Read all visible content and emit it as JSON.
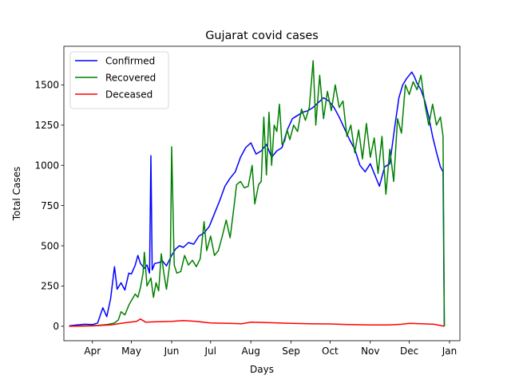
{
  "chart_data": {
    "type": "line",
    "title": "Gujarat covid cases",
    "xlabel": "Days",
    "ylabel": "Total Cases",
    "x_range": [
      "2020-03-10",
      "2021-01-09"
    ],
    "ylim": [
      -90,
      1740
    ],
    "x_ticks": [
      {
        "date": "2020-04-01",
        "label": "Apr"
      },
      {
        "date": "2020-05-01",
        "label": "May"
      },
      {
        "date": "2020-06-01",
        "label": "Jun"
      },
      {
        "date": "2020-07-01",
        "label": "Jul"
      },
      {
        "date": "2020-08-01",
        "label": "Aug"
      },
      {
        "date": "2020-09-01",
        "label": "Sep"
      },
      {
        "date": "2020-10-01",
        "label": "Oct"
      },
      {
        "date": "2020-11-01",
        "label": "Nov"
      },
      {
        "date": "2020-12-01",
        "label": "Dec"
      },
      {
        "date": "2021-01-01",
        "label": "Jan"
      }
    ],
    "y_ticks": [
      {
        "value": 0,
        "label": "0"
      },
      {
        "value": 250,
        "label": "250"
      },
      {
        "value": 500,
        "label": "500"
      },
      {
        "value": 750,
        "label": "750"
      },
      {
        "value": 1000,
        "label": "1000"
      },
      {
        "value": 1250,
        "label": "1250"
      },
      {
        "value": 1500,
        "label": "1500"
      }
    ],
    "grid": false,
    "legend": "top-left",
    "series": [
      {
        "name": "Confirmed",
        "color": "#0000ff",
        "points": [
          [
            "2020-03-14",
            2
          ],
          [
            "2020-03-20",
            8
          ],
          [
            "2020-03-26",
            12
          ],
          [
            "2020-04-01",
            10
          ],
          [
            "2020-04-05",
            20
          ],
          [
            "2020-04-09",
            115
          ],
          [
            "2020-04-12",
            60
          ],
          [
            "2020-04-15",
            170
          ],
          [
            "2020-04-18",
            370
          ],
          [
            "2020-04-20",
            230
          ],
          [
            "2020-04-23",
            270
          ],
          [
            "2020-04-26",
            225
          ],
          [
            "2020-04-29",
            330
          ],
          [
            "2020-05-01",
            325
          ],
          [
            "2020-05-04",
            380
          ],
          [
            "2020-05-06",
            440
          ],
          [
            "2020-05-08",
            390
          ],
          [
            "2020-05-11",
            360
          ],
          [
            "2020-05-13",
            380
          ],
          [
            "2020-05-15",
            330
          ],
          [
            "2020-05-16",
            1060
          ],
          [
            "2020-05-17",
            350
          ],
          [
            "2020-05-19",
            390
          ],
          [
            "2020-05-22",
            395
          ],
          [
            "2020-05-25",
            405
          ],
          [
            "2020-05-28",
            375
          ],
          [
            "2020-06-01",
            440
          ],
          [
            "2020-06-04",
            480
          ],
          [
            "2020-06-07",
            500
          ],
          [
            "2020-06-10",
            490
          ],
          [
            "2020-06-14",
            520
          ],
          [
            "2020-06-18",
            510
          ],
          [
            "2020-06-22",
            560
          ],
          [
            "2020-06-26",
            580
          ],
          [
            "2020-06-30",
            620
          ],
          [
            "2020-07-04",
            700
          ],
          [
            "2020-07-08",
            780
          ],
          [
            "2020-07-12",
            870
          ],
          [
            "2020-07-16",
            920
          ],
          [
            "2020-07-20",
            960
          ],
          [
            "2020-07-24",
            1050
          ],
          [
            "2020-07-28",
            1110
          ],
          [
            "2020-08-01",
            1140
          ],
          [
            "2020-08-05",
            1070
          ],
          [
            "2020-08-09",
            1090
          ],
          [
            "2020-08-13",
            1130
          ],
          [
            "2020-08-17",
            1050
          ],
          [
            "2020-08-21",
            1090
          ],
          [
            "2020-08-25",
            1110
          ],
          [
            "2020-08-29",
            1220
          ],
          [
            "2020-09-02",
            1290
          ],
          [
            "2020-09-06",
            1310
          ],
          [
            "2020-09-10",
            1330
          ],
          [
            "2020-09-14",
            1340
          ],
          [
            "2020-09-18",
            1360
          ],
          [
            "2020-09-22",
            1390
          ],
          [
            "2020-09-26",
            1420
          ],
          [
            "2020-09-30",
            1400
          ],
          [
            "2020-10-04",
            1360
          ],
          [
            "2020-10-08",
            1300
          ],
          [
            "2020-10-12",
            1230
          ],
          [
            "2020-10-16",
            1160
          ],
          [
            "2020-10-20",
            1100
          ],
          [
            "2020-10-24",
            1000
          ],
          [
            "2020-10-28",
            960
          ],
          [
            "2020-11-01",
            1010
          ],
          [
            "2020-11-05",
            930
          ],
          [
            "2020-11-08",
            870
          ],
          [
            "2020-11-12",
            990
          ],
          [
            "2020-11-16",
            1010
          ],
          [
            "2020-11-20",
            1250
          ],
          [
            "2020-11-23",
            1420
          ],
          [
            "2020-11-26",
            1500
          ],
          [
            "2020-11-29",
            1540
          ],
          [
            "2020-12-03",
            1580
          ],
          [
            "2020-12-05",
            1550
          ],
          [
            "2020-12-07",
            1510
          ],
          [
            "2020-12-10",
            1470
          ],
          [
            "2020-12-13",
            1400
          ],
          [
            "2020-12-16",
            1300
          ],
          [
            "2020-12-19",
            1180
          ],
          [
            "2020-12-22",
            1080
          ],
          [
            "2020-12-25",
            990
          ],
          [
            "2020-12-27",
            960
          ],
          [
            "2020-12-28",
            0
          ]
        ]
      },
      {
        "name": "Recovered",
        "color": "#008000",
        "points": [
          [
            "2020-03-14",
            0
          ],
          [
            "2020-03-28",
            2
          ],
          [
            "2020-04-05",
            5
          ],
          [
            "2020-04-12",
            10
          ],
          [
            "2020-04-18",
            20
          ],
          [
            "2020-04-21",
            40
          ],
          [
            "2020-04-23",
            90
          ],
          [
            "2020-04-26",
            70
          ],
          [
            "2020-04-29",
            130
          ],
          [
            "2020-05-01",
            160
          ],
          [
            "2020-05-04",
            200
          ],
          [
            "2020-05-06",
            180
          ],
          [
            "2020-05-08",
            240
          ],
          [
            "2020-05-10",
            330
          ],
          [
            "2020-05-11",
            460
          ],
          [
            "2020-05-13",
            250
          ],
          [
            "2020-05-16",
            300
          ],
          [
            "2020-05-18",
            180
          ],
          [
            "2020-05-20",
            270
          ],
          [
            "2020-05-22",
            220
          ],
          [
            "2020-05-24",
            450
          ],
          [
            "2020-05-26",
            330
          ],
          [
            "2020-05-28",
            230
          ],
          [
            "2020-05-31",
            420
          ],
          [
            "2020-06-01",
            1115
          ],
          [
            "2020-06-03",
            380
          ],
          [
            "2020-06-05",
            330
          ],
          [
            "2020-06-08",
            340
          ],
          [
            "2020-06-11",
            440
          ],
          [
            "2020-06-14",
            380
          ],
          [
            "2020-06-17",
            410
          ],
          [
            "2020-06-20",
            370
          ],
          [
            "2020-06-23",
            420
          ],
          [
            "2020-06-26",
            650
          ],
          [
            "2020-06-28",
            470
          ],
          [
            "2020-07-01",
            560
          ],
          [
            "2020-07-04",
            440
          ],
          [
            "2020-07-07",
            470
          ],
          [
            "2020-07-10",
            560
          ],
          [
            "2020-07-13",
            660
          ],
          [
            "2020-07-16",
            550
          ],
          [
            "2020-07-19",
            740
          ],
          [
            "2020-07-21",
            880
          ],
          [
            "2020-07-24",
            900
          ],
          [
            "2020-07-27",
            860
          ],
          [
            "2020-07-30",
            870
          ],
          [
            "2020-08-02",
            1000
          ],
          [
            "2020-08-04",
            760
          ],
          [
            "2020-08-07",
            880
          ],
          [
            "2020-08-09",
            900
          ],
          [
            "2020-08-11",
            1300
          ],
          [
            "2020-08-13",
            940
          ],
          [
            "2020-08-15",
            1330
          ],
          [
            "2020-08-17",
            1000
          ],
          [
            "2020-08-19",
            1250
          ],
          [
            "2020-08-21",
            1210
          ],
          [
            "2020-08-23",
            1380
          ],
          [
            "2020-08-25",
            1130
          ],
          [
            "2020-08-27",
            1150
          ],
          [
            "2020-08-29",
            1220
          ],
          [
            "2020-08-31",
            1160
          ],
          [
            "2020-09-03",
            1250
          ],
          [
            "2020-09-06",
            1210
          ],
          [
            "2020-09-09",
            1350
          ],
          [
            "2020-09-12",
            1280
          ],
          [
            "2020-09-15",
            1360
          ],
          [
            "2020-09-18",
            1650
          ],
          [
            "2020-09-20",
            1250
          ],
          [
            "2020-09-23",
            1560
          ],
          [
            "2020-09-26",
            1290
          ],
          [
            "2020-09-29",
            1460
          ],
          [
            "2020-10-02",
            1340
          ],
          [
            "2020-10-05",
            1500
          ],
          [
            "2020-10-08",
            1360
          ],
          [
            "2020-10-11",
            1400
          ],
          [
            "2020-10-14",
            1180
          ],
          [
            "2020-10-17",
            1250
          ],
          [
            "2020-10-20",
            1080
          ],
          [
            "2020-10-23",
            1220
          ],
          [
            "2020-10-26",
            1040
          ],
          [
            "2020-10-29",
            1260
          ],
          [
            "2020-11-01",
            1050
          ],
          [
            "2020-11-04",
            1170
          ],
          [
            "2020-11-07",
            950
          ],
          [
            "2020-11-10",
            1180
          ],
          [
            "2020-11-13",
            820
          ],
          [
            "2020-11-16",
            1100
          ],
          [
            "2020-11-19",
            900
          ],
          [
            "2020-11-22",
            1290
          ],
          [
            "2020-11-25",
            1200
          ],
          [
            "2020-11-28",
            1500
          ],
          [
            "2020-12-01",
            1440
          ],
          [
            "2020-12-04",
            1520
          ],
          [
            "2020-12-07",
            1470
          ],
          [
            "2020-12-10",
            1560
          ],
          [
            "2020-12-13",
            1380
          ],
          [
            "2020-12-16",
            1250
          ],
          [
            "2020-12-19",
            1380
          ],
          [
            "2020-12-22",
            1250
          ],
          [
            "2020-12-25",
            1300
          ],
          [
            "2020-12-27",
            1180
          ],
          [
            "2020-12-28",
            0
          ]
        ]
      },
      {
        "name": "Deceased",
        "color": "#ff0000",
        "points": [
          [
            "2020-03-14",
            0
          ],
          [
            "2020-04-01",
            2
          ],
          [
            "2020-04-15",
            8
          ],
          [
            "2020-04-25",
            20
          ],
          [
            "2020-05-05",
            30
          ],
          [
            "2020-05-08",
            45
          ],
          [
            "2020-05-12",
            25
          ],
          [
            "2020-05-20",
            28
          ],
          [
            "2020-06-01",
            30
          ],
          [
            "2020-06-10",
            35
          ],
          [
            "2020-06-20",
            30
          ],
          [
            "2020-07-01",
            20
          ],
          [
            "2020-07-15",
            18
          ],
          [
            "2020-07-25",
            15
          ],
          [
            "2020-08-01",
            25
          ],
          [
            "2020-08-15",
            22
          ],
          [
            "2020-09-01",
            18
          ],
          [
            "2020-09-15",
            15
          ],
          [
            "2020-10-01",
            14
          ],
          [
            "2020-10-15",
            10
          ],
          [
            "2020-11-01",
            8
          ],
          [
            "2020-11-15",
            8
          ],
          [
            "2020-11-25",
            12
          ],
          [
            "2020-12-01",
            18
          ],
          [
            "2020-12-10",
            15
          ],
          [
            "2020-12-20",
            12
          ],
          [
            "2020-12-28",
            0
          ]
        ]
      }
    ]
  }
}
